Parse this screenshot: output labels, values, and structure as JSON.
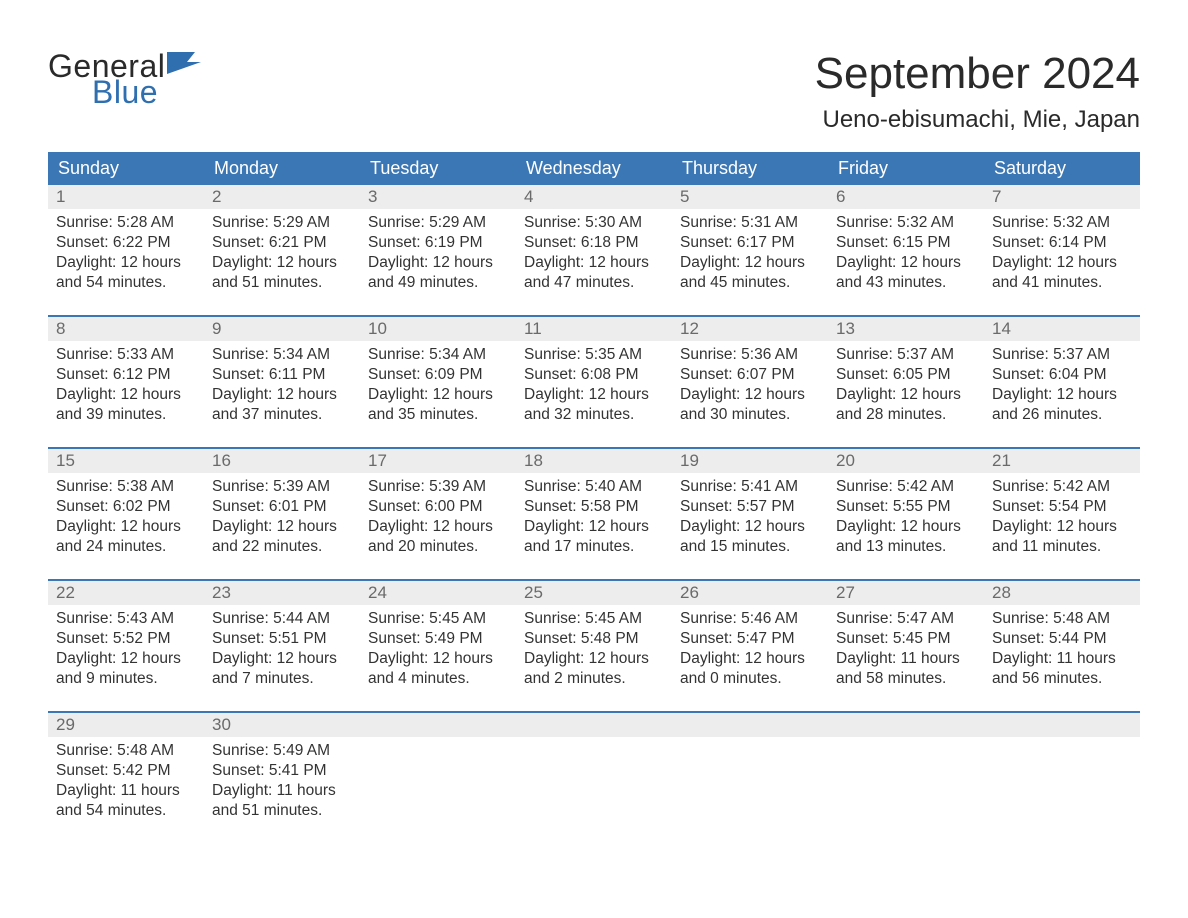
{
  "brand": {
    "line1": "General",
    "line2": "Blue",
    "color_text": "#2a2a2a",
    "color_blue": "#2f6fb0"
  },
  "title": "September 2024",
  "location": "Ueno-ebisumachi, Mie, Japan",
  "colors": {
    "header_bg": "#3b77b5",
    "header_text": "#ffffff",
    "daynum_bg": "#ededed",
    "daynum_text": "#6a6a6a",
    "body_text": "#333333",
    "week_divider": "#3b77b5",
    "page_bg": "#ffffff"
  },
  "day_names": [
    "Sunday",
    "Monday",
    "Tuesday",
    "Wednesday",
    "Thursday",
    "Friday",
    "Saturday"
  ],
  "weeks": [
    [
      {
        "n": "1",
        "sr": "Sunrise: 5:28 AM",
        "ss": "Sunset: 6:22 PM",
        "d1": "Daylight: 12 hours",
        "d2": "and 54 minutes."
      },
      {
        "n": "2",
        "sr": "Sunrise: 5:29 AM",
        "ss": "Sunset: 6:21 PM",
        "d1": "Daylight: 12 hours",
        "d2": "and 51 minutes."
      },
      {
        "n": "3",
        "sr": "Sunrise: 5:29 AM",
        "ss": "Sunset: 6:19 PM",
        "d1": "Daylight: 12 hours",
        "d2": "and 49 minutes."
      },
      {
        "n": "4",
        "sr": "Sunrise: 5:30 AM",
        "ss": "Sunset: 6:18 PM",
        "d1": "Daylight: 12 hours",
        "d2": "and 47 minutes."
      },
      {
        "n": "5",
        "sr": "Sunrise: 5:31 AM",
        "ss": "Sunset: 6:17 PM",
        "d1": "Daylight: 12 hours",
        "d2": "and 45 minutes."
      },
      {
        "n": "6",
        "sr": "Sunrise: 5:32 AM",
        "ss": "Sunset: 6:15 PM",
        "d1": "Daylight: 12 hours",
        "d2": "and 43 minutes."
      },
      {
        "n": "7",
        "sr": "Sunrise: 5:32 AM",
        "ss": "Sunset: 6:14 PM",
        "d1": "Daylight: 12 hours",
        "d2": "and 41 minutes."
      }
    ],
    [
      {
        "n": "8",
        "sr": "Sunrise: 5:33 AM",
        "ss": "Sunset: 6:12 PM",
        "d1": "Daylight: 12 hours",
        "d2": "and 39 minutes."
      },
      {
        "n": "9",
        "sr": "Sunrise: 5:34 AM",
        "ss": "Sunset: 6:11 PM",
        "d1": "Daylight: 12 hours",
        "d2": "and 37 minutes."
      },
      {
        "n": "10",
        "sr": "Sunrise: 5:34 AM",
        "ss": "Sunset: 6:09 PM",
        "d1": "Daylight: 12 hours",
        "d2": "and 35 minutes."
      },
      {
        "n": "11",
        "sr": "Sunrise: 5:35 AM",
        "ss": "Sunset: 6:08 PM",
        "d1": "Daylight: 12 hours",
        "d2": "and 32 minutes."
      },
      {
        "n": "12",
        "sr": "Sunrise: 5:36 AM",
        "ss": "Sunset: 6:07 PM",
        "d1": "Daylight: 12 hours",
        "d2": "and 30 minutes."
      },
      {
        "n": "13",
        "sr": "Sunrise: 5:37 AM",
        "ss": "Sunset: 6:05 PM",
        "d1": "Daylight: 12 hours",
        "d2": "and 28 minutes."
      },
      {
        "n": "14",
        "sr": "Sunrise: 5:37 AM",
        "ss": "Sunset: 6:04 PM",
        "d1": "Daylight: 12 hours",
        "d2": "and 26 minutes."
      }
    ],
    [
      {
        "n": "15",
        "sr": "Sunrise: 5:38 AM",
        "ss": "Sunset: 6:02 PM",
        "d1": "Daylight: 12 hours",
        "d2": "and 24 minutes."
      },
      {
        "n": "16",
        "sr": "Sunrise: 5:39 AM",
        "ss": "Sunset: 6:01 PM",
        "d1": "Daylight: 12 hours",
        "d2": "and 22 minutes."
      },
      {
        "n": "17",
        "sr": "Sunrise: 5:39 AM",
        "ss": "Sunset: 6:00 PM",
        "d1": "Daylight: 12 hours",
        "d2": "and 20 minutes."
      },
      {
        "n": "18",
        "sr": "Sunrise: 5:40 AM",
        "ss": "Sunset: 5:58 PM",
        "d1": "Daylight: 12 hours",
        "d2": "and 17 minutes."
      },
      {
        "n": "19",
        "sr": "Sunrise: 5:41 AM",
        "ss": "Sunset: 5:57 PM",
        "d1": "Daylight: 12 hours",
        "d2": "and 15 minutes."
      },
      {
        "n": "20",
        "sr": "Sunrise: 5:42 AM",
        "ss": "Sunset: 5:55 PM",
        "d1": "Daylight: 12 hours",
        "d2": "and 13 minutes."
      },
      {
        "n": "21",
        "sr": "Sunrise: 5:42 AM",
        "ss": "Sunset: 5:54 PM",
        "d1": "Daylight: 12 hours",
        "d2": "and 11 minutes."
      }
    ],
    [
      {
        "n": "22",
        "sr": "Sunrise: 5:43 AM",
        "ss": "Sunset: 5:52 PM",
        "d1": "Daylight: 12 hours",
        "d2": "and 9 minutes."
      },
      {
        "n": "23",
        "sr": "Sunrise: 5:44 AM",
        "ss": "Sunset: 5:51 PM",
        "d1": "Daylight: 12 hours",
        "d2": "and 7 minutes."
      },
      {
        "n": "24",
        "sr": "Sunrise: 5:45 AM",
        "ss": "Sunset: 5:49 PM",
        "d1": "Daylight: 12 hours",
        "d2": "and 4 minutes."
      },
      {
        "n": "25",
        "sr": "Sunrise: 5:45 AM",
        "ss": "Sunset: 5:48 PM",
        "d1": "Daylight: 12 hours",
        "d2": "and 2 minutes."
      },
      {
        "n": "26",
        "sr": "Sunrise: 5:46 AM",
        "ss": "Sunset: 5:47 PM",
        "d1": "Daylight: 12 hours",
        "d2": "and 0 minutes."
      },
      {
        "n": "27",
        "sr": "Sunrise: 5:47 AM",
        "ss": "Sunset: 5:45 PM",
        "d1": "Daylight: 11 hours",
        "d2": "and 58 minutes."
      },
      {
        "n": "28",
        "sr": "Sunrise: 5:48 AM",
        "ss": "Sunset: 5:44 PM",
        "d1": "Daylight: 11 hours",
        "d2": "and 56 minutes."
      }
    ],
    [
      {
        "n": "29",
        "sr": "Sunrise: 5:48 AM",
        "ss": "Sunset: 5:42 PM",
        "d1": "Daylight: 11 hours",
        "d2": "and 54 minutes."
      },
      {
        "n": "30",
        "sr": "Sunrise: 5:49 AM",
        "ss": "Sunset: 5:41 PM",
        "d1": "Daylight: 11 hours",
        "d2": "and 51 minutes."
      },
      {
        "empty": true
      },
      {
        "empty": true
      },
      {
        "empty": true
      },
      {
        "empty": true
      },
      {
        "empty": true
      }
    ]
  ]
}
